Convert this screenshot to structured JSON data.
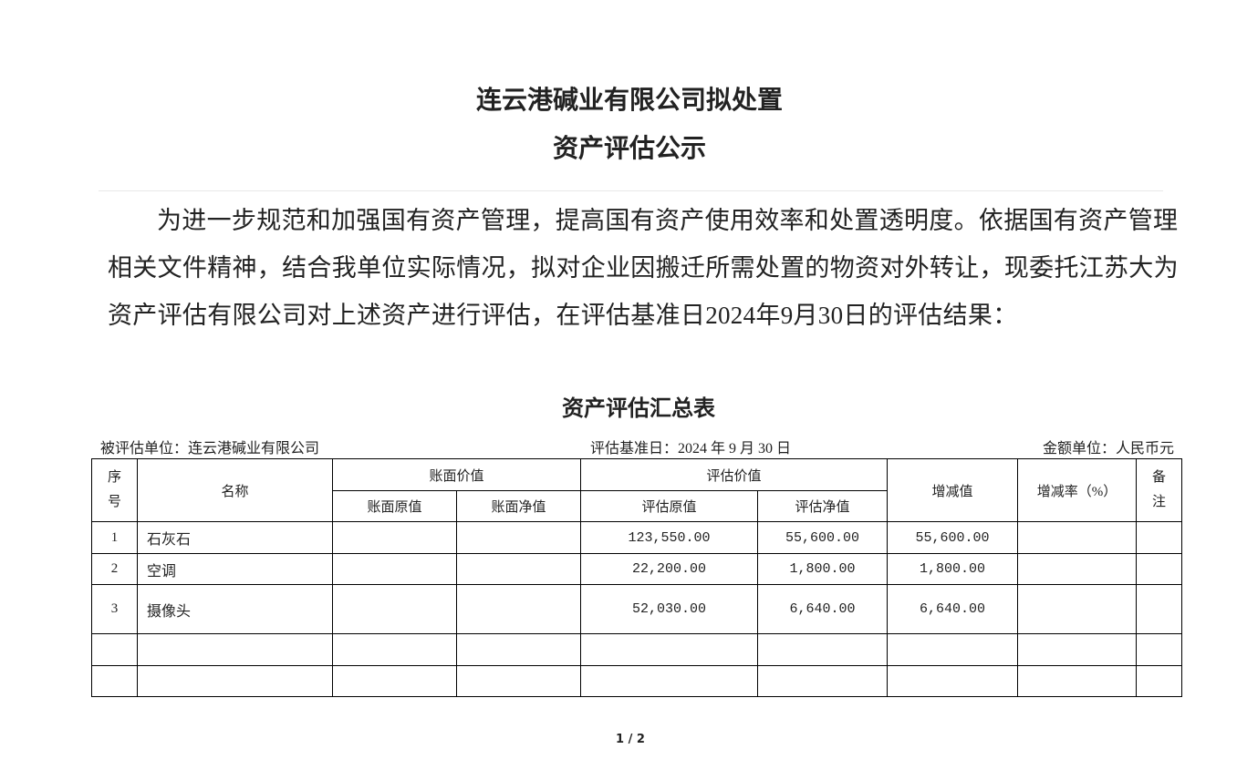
{
  "doc": {
    "title_line1": "连云港碱业有限公司拟处置",
    "title_line2": "资产评估公示",
    "paragraph_lines": [
      "为进一步规范和加强国有资产管理，提高国有资产使用效率和处置透明度。依据国有资产管理",
      "相关文件精神，结合我单位实际情况，拟对企业因搬迁所需处置的物资对外转让，现委托江苏大为",
      "资产评估有限公司对上述资产进行评估，在评估基准日2024年9月30日的评估结果："
    ]
  },
  "table": {
    "title": "资产评估汇总表",
    "unit_evaluated": "被评估单位：连云港碱业有限公司",
    "base_date": "评估基准日：2024 年 9 月 30 日",
    "currency": "金额单位：人民币元",
    "headers": {
      "seq": "序号",
      "name": "名称",
      "book_value": "账面价值",
      "book_original": "账面原值",
      "book_net": "账面净值",
      "eval_value": "评估价值",
      "eval_original": "评估原值",
      "eval_net": "评估净值",
      "change": "增减值",
      "change_rate": "增减率（%）",
      "remark": "备注"
    },
    "rows": [
      {
        "seq": "1",
        "name": "石灰石",
        "book_original": "",
        "book_net": "",
        "eval_original": "123,550.00",
        "eval_net": "55,600.00",
        "change": "55,600.00",
        "change_rate": "",
        "remark": ""
      },
      {
        "seq": "2",
        "name": "空调",
        "book_original": "",
        "book_net": "",
        "eval_original": "22,200.00",
        "eval_net": "1,800.00",
        "change": "1,800.00",
        "change_rate": "",
        "remark": ""
      },
      {
        "seq": "3",
        "name": "摄像头",
        "book_original": "",
        "book_net": "",
        "eval_original": "52,030.00",
        "eval_net": "6,640.00",
        "change": "6,640.00",
        "change_rate": "",
        "remark": ""
      },
      {
        "seq": "",
        "name": "",
        "book_original": "",
        "book_net": "",
        "eval_original": "",
        "eval_net": "",
        "change": "",
        "change_rate": "",
        "remark": ""
      },
      {
        "seq": "",
        "name": "",
        "book_original": "",
        "book_net": "",
        "eval_original": "",
        "eval_net": "",
        "change": "",
        "change_rate": "",
        "remark": ""
      }
    ]
  },
  "pager": "1 / 2"
}
